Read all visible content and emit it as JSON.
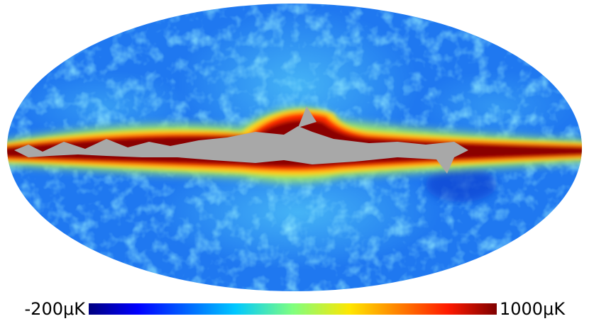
{
  "colorbar": {
    "min_label": "-200μK",
    "max_label": "1000μK"
  }
}
